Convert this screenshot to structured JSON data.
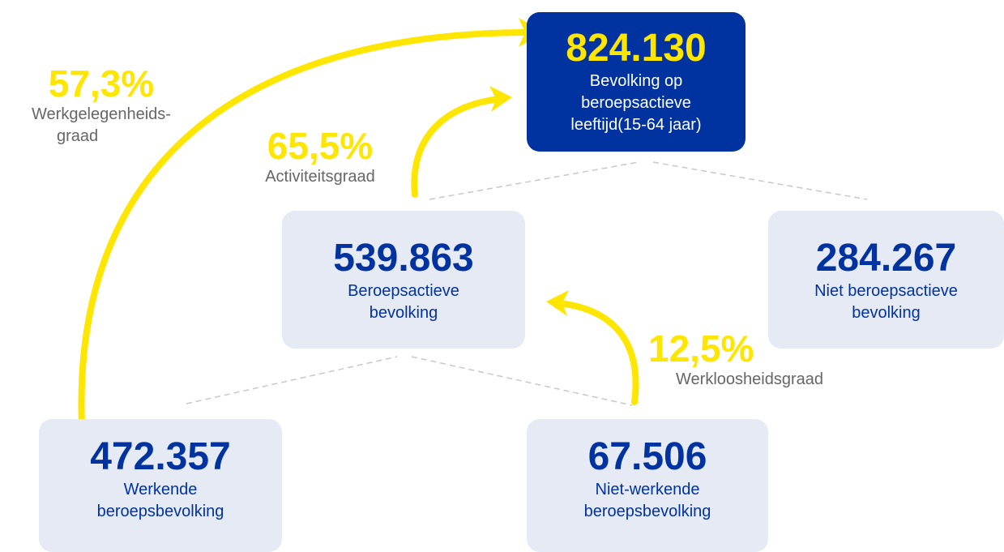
{
  "nodes": [
    {
      "value": "824.130",
      "label": [
        "Bevolking op",
        "beroepsactieve",
        "leeftijd(15-64 jaar)"
      ]
    },
    {
      "value": "539.863",
      "label": [
        "Beroepsactieve",
        "bevolking"
      ]
    },
    {
      "value": "284.267",
      "label": [
        "Niet beroepsactieve",
        "bevolking"
      ]
    },
    {
      "value": "472.357",
      "label": [
        "Werkende",
        "beroepsbevolking"
      ]
    },
    {
      "value": "67.506",
      "label": [
        "Niet-werkende",
        "beroepsbevolking"
      ]
    }
  ],
  "rates": [
    {
      "value": "57,3%",
      "label": [
        "Werkgelegenheids-",
        "graad"
      ]
    },
    {
      "value": "65,5%",
      "label": [
        "Activiteitsgraad"
      ]
    },
    {
      "value": "12,5%",
      "label": [
        "Werkloosheidsgraad"
      ]
    }
  ]
}
